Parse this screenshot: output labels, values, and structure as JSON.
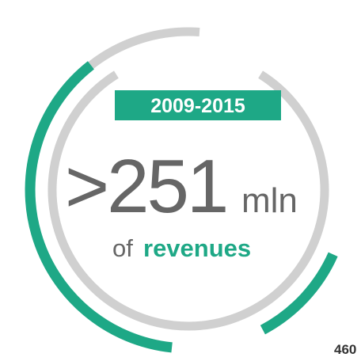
{
  "badge": "2009-2015",
  "figure": ">251",
  "unit": "mln",
  "caption_prefix": "of",
  "caption_highlight": "revenues",
  "page_number": "460"
}
